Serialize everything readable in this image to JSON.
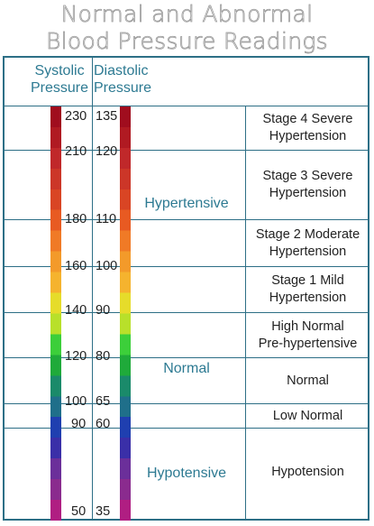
{
  "title_line1": "Normal and Abnormal",
  "title_line2": "Blood Pressure Readings",
  "headers": {
    "systolic_1": "Systolic",
    "systolic_2": "Pressure",
    "diastolic_1": "Diastolic",
    "diastolic_2": "Pressure"
  },
  "systolic_values": [
    "230",
    "210",
    "180",
    "160",
    "140",
    "120",
    "100",
    "90",
    "50"
  ],
  "diastolic_values": [
    "135",
    "120",
    "110",
    "100",
    "90",
    "80",
    "65",
    "60",
    "35"
  ],
  "categories": {
    "hypertensive": "Hypertensive",
    "normal": "Normal",
    "hypotensive": "Hypotensive"
  },
  "stages": [
    {
      "line1": "Stage 4 Severe",
      "line2": "Hypertension"
    },
    {
      "line1": "Stage 3 Severe",
      "line2": "Hypertension"
    },
    {
      "line1": "Stage 2 Moderate",
      "line2": "Hypertension"
    },
    {
      "line1": "Stage 1 Mild",
      "line2": "Hypertension"
    },
    {
      "line1": "High Normal",
      "line2": "Pre-hypertensive"
    },
    {
      "line1": "Normal",
      "line2": ""
    },
    {
      "line1": "Low Normal",
      "line2": ""
    },
    {
      "line1": "Hypotension",
      "line2": ""
    }
  ],
  "colors": {
    "border": "#2d6f86",
    "header_text": "#2d7a92",
    "gradient": [
      "#a00d1e",
      "#b01a22",
      "#c0282a",
      "#cc3628",
      "#d94524",
      "#e85a22",
      "#f07a26",
      "#f39a2a",
      "#f5b32e",
      "#e6dc2a",
      "#b8e02a",
      "#3ccf3a",
      "#1faa3a",
      "#1a8a6a",
      "#1f6f8a",
      "#1f3fb0",
      "#3a2fa8",
      "#6b2f9a",
      "#8a2b8e",
      "#b01e82"
    ]
  }
}
